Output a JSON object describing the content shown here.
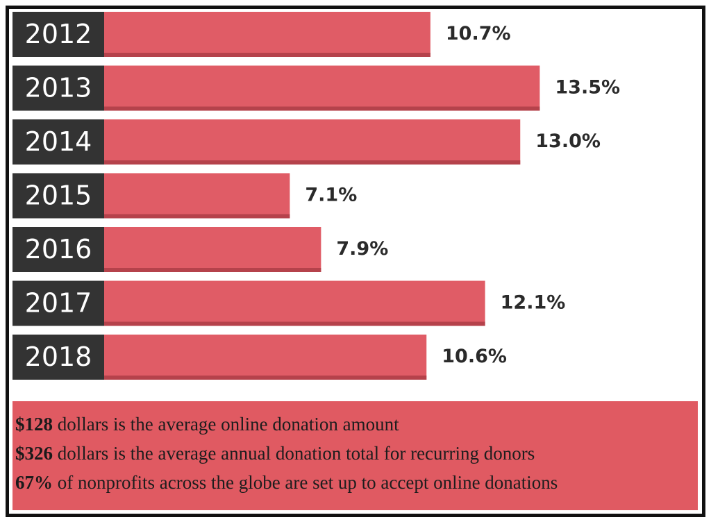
{
  "chart_data": {
    "type": "bar",
    "orientation": "horizontal",
    "color": "#e05c66",
    "categories": [
      "2012",
      "2013",
      "2014",
      "2015",
      "2016",
      "2017",
      "2018"
    ],
    "values": [
      10.7,
      13.5,
      13.0,
      7.1,
      7.9,
      12.1,
      10.6
    ],
    "value_labels": [
      "10.7%",
      "13.5%",
      "13.0%",
      "7.1%",
      "7.9%",
      "12.1%",
      "10.6%"
    ]
  },
  "facts": [
    {
      "highlight": "$128",
      "text": "dollars is the average online donation amount"
    },
    {
      "highlight": "$326",
      "text": "dollars is the average annual donation total for recurring donors"
    },
    {
      "highlight": "67%",
      "text": "of nonprofits across the globe are set up to accept online donations"
    }
  ]
}
